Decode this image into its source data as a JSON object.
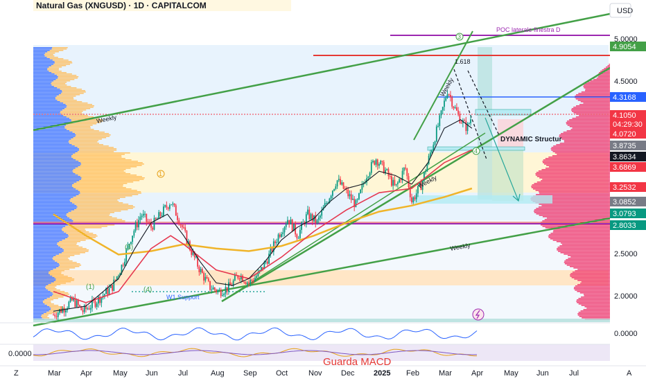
{
  "header": {
    "title": "Natural Gas (XNGUSD) · 1D · CAPITALCOM",
    "currency": "USD"
  },
  "right_axis": {
    "ticks": [
      "5.0000",
      "4.5000",
      "2.5000",
      "2.0000"
    ],
    "indicator_tick": "0.0000"
  },
  "left_axis": {
    "indicator_tick": "0.0000"
  },
  "price_tags": [
    {
      "label": "4.9054",
      "color": "#43a047"
    },
    {
      "label": "4.3168",
      "color": "#2962ff"
    },
    {
      "label": "4.1050",
      "color": "#f23645"
    },
    {
      "label": "04:29:30",
      "color": "#f23645"
    },
    {
      "label": "4.0720",
      "color": "#f23645"
    },
    {
      "label": "3.8735",
      "color": "#787b86"
    },
    {
      "label": "3.8634",
      "color": "#131722"
    },
    {
      "label": "3.6869",
      "color": "#f23645"
    },
    {
      "label": "3.2532",
      "color": "#f23645"
    },
    {
      "label": "3.0852",
      "color": "#787b86"
    },
    {
      "label": "3.0793",
      "color": "#089981"
    },
    {
      "label": "2.8033",
      "color": "#089981"
    }
  ],
  "time_axis": {
    "labels": [
      "Mar",
      "Apr",
      "May",
      "Jun",
      "Jul",
      "Aug",
      "Sep",
      "Oct",
      "Nov",
      "Dec",
      "2025",
      "Feb",
      "Mar",
      "Apr",
      "May",
      "Jun",
      "Jul"
    ],
    "left_glyph": "Z",
    "right_glyph": "A"
  },
  "annotations": {
    "weekly_1": "Weekly",
    "weekly_2": "Weekly",
    "weekly_3": "Weekly",
    "weekly_4": "Weekly",
    "poc": "POC laterale finestra D",
    "fib": "1.618",
    "dynamic": "DYNAMIC Structur",
    "w1_support": "W1 Support",
    "wave_1": "(1)",
    "wave_3": "(3)",
    "wave_4": "(4)",
    "wave_3_circle": "3",
    "wave_1_circle": "1",
    "wave_4_circle": "4",
    "macd_note": "Guarda MACD"
  },
  "colors": {
    "green_line": "#43a047",
    "red_line": "#e53935",
    "blue_line": "#2962ff",
    "purple_line": "#9c27b0",
    "ema_yellow": "#f0b429",
    "ema_red": "#e53950",
    "ema_black": "#131722",
    "vol_blue": "#2962ff",
    "vol_orange": "#ffb74d",
    "vol_pink": "#f0356b",
    "zone_yellow": "#fff3c4",
    "zone_orange": "#ffe0b2",
    "zone_teal": "#b2dfdb",
    "zone_blue_bg": "#e3f2fd"
  },
  "chart_data": {
    "type": "candlestick",
    "title": "Natural Gas (XNGUSD) · 1D · CAPITALCOM",
    "ylabel": "USD",
    "ylim": [
      1.7,
      5.3
    ],
    "x": [
      "Mar",
      "Apr",
      "May",
      "Jun",
      "Jul",
      "Aug",
      "Sep",
      "Oct",
      "Nov",
      "Dec",
      "2025",
      "Feb",
      "Mar",
      "Apr",
      "May",
      "Jun",
      "Jul"
    ],
    "close_path": [
      [
        0.0,
        1.78
      ],
      [
        0.3,
        1.85
      ],
      [
        0.6,
        1.95
      ],
      [
        0.9,
        1.82
      ],
      [
        1.2,
        1.9
      ],
      [
        1.5,
        2.0
      ],
      [
        1.8,
        2.1
      ],
      [
        2.1,
        2.35
      ],
      [
        2.4,
        2.7
      ],
      [
        2.7,
        2.95
      ],
      [
        3.0,
        2.8
      ],
      [
        3.3,
        2.95
      ],
      [
        3.6,
        3.1
      ],
      [
        3.9,
        2.85
      ],
      [
        4.2,
        2.55
      ],
      [
        4.5,
        2.3
      ],
      [
        4.8,
        2.1
      ],
      [
        5.1,
        2.05
      ],
      [
        5.4,
        2.1
      ],
      [
        5.7,
        2.25
      ],
      [
        6.0,
        2.15
      ],
      [
        6.3,
        2.25
      ],
      [
        6.6,
        2.45
      ],
      [
        6.9,
        2.7
      ],
      [
        7.2,
        2.9
      ],
      [
        7.5,
        2.7
      ],
      [
        7.8,
        2.95
      ],
      [
        8.1,
        2.85
      ],
      [
        8.4,
        3.1
      ],
      [
        8.7,
        3.35
      ],
      [
        9.0,
        3.2
      ],
      [
        9.3,
        3.05
      ],
      [
        9.6,
        3.4
      ],
      [
        9.9,
        3.6
      ],
      [
        10.2,
        3.45
      ],
      [
        10.5,
        3.25
      ],
      [
        10.8,
        3.5
      ],
      [
        11.0,
        3.1
      ],
      [
        11.3,
        3.3
      ],
      [
        11.6,
        3.7
      ],
      [
        11.9,
        4.1
      ],
      [
        12.1,
        4.4
      ],
      [
        12.3,
        4.2
      ],
      [
        12.5,
        4.05
      ],
      [
        12.7,
        3.95
      ],
      [
        12.85,
        4.105
      ]
    ],
    "ema_black": [
      [
        0.0,
        1.82
      ],
      [
        1.0,
        1.88
      ],
      [
        2.0,
        2.2
      ],
      [
        2.5,
        2.55
      ],
      [
        3.0,
        2.85
      ],
      [
        3.5,
        2.95
      ],
      [
        4.0,
        2.7
      ],
      [
        4.5,
        2.4
      ],
      [
        5.0,
        2.15
      ],
      [
        5.5,
        2.12
      ],
      [
        6.0,
        2.2
      ],
      [
        6.5,
        2.4
      ],
      [
        7.0,
        2.65
      ],
      [
        7.5,
        2.8
      ],
      [
        8.0,
        2.9
      ],
      [
        8.5,
        3.1
      ],
      [
        9.0,
        3.25
      ],
      [
        9.5,
        3.3
      ],
      [
        10.0,
        3.45
      ],
      [
        10.5,
        3.4
      ],
      [
        11.0,
        3.3
      ],
      [
        11.5,
        3.55
      ],
      [
        12.0,
        3.95
      ],
      [
        12.5,
        4.05
      ],
      [
        12.85,
        3.95
      ]
    ],
    "ema_red": [
      [
        0.0,
        2.05
      ],
      [
        1.0,
        1.92
      ],
      [
        2.0,
        2.05
      ],
      [
        3.0,
        2.55
      ],
      [
        3.6,
        2.7
      ],
      [
        4.0,
        2.6
      ],
      [
        5.0,
        2.3
      ],
      [
        6.0,
        2.2
      ],
      [
        7.0,
        2.45
      ],
      [
        8.0,
        2.75
      ],
      [
        9.0,
        3.0
      ],
      [
        10.0,
        3.2
      ],
      [
        11.0,
        3.25
      ],
      [
        12.0,
        3.55
      ],
      [
        12.85,
        3.7
      ]
    ],
    "ema_yellow": [
      [
        0.0,
        2.95
      ],
      [
        1.0,
        2.7
      ],
      [
        2.0,
        2.48
      ],
      [
        3.0,
        2.52
      ],
      [
        4.0,
        2.6
      ],
      [
        5.0,
        2.55
      ],
      [
        6.0,
        2.52
      ],
      [
        7.0,
        2.58
      ],
      [
        8.0,
        2.7
      ],
      [
        9.0,
        2.85
      ],
      [
        10.0,
        2.98
      ],
      [
        11.0,
        3.05
      ],
      [
        12.0,
        3.15
      ],
      [
        12.85,
        3.25
      ]
    ],
    "levels": [
      {
        "label": "POC laterale finestra D",
        "y": 5.02
      },
      {
        "label": "4.9054",
        "y": 4.9054
      },
      {
        "label": "4.3168",
        "y": 4.3168
      },
      {
        "label": "2.8033",
        "y": 2.8033
      }
    ]
  }
}
